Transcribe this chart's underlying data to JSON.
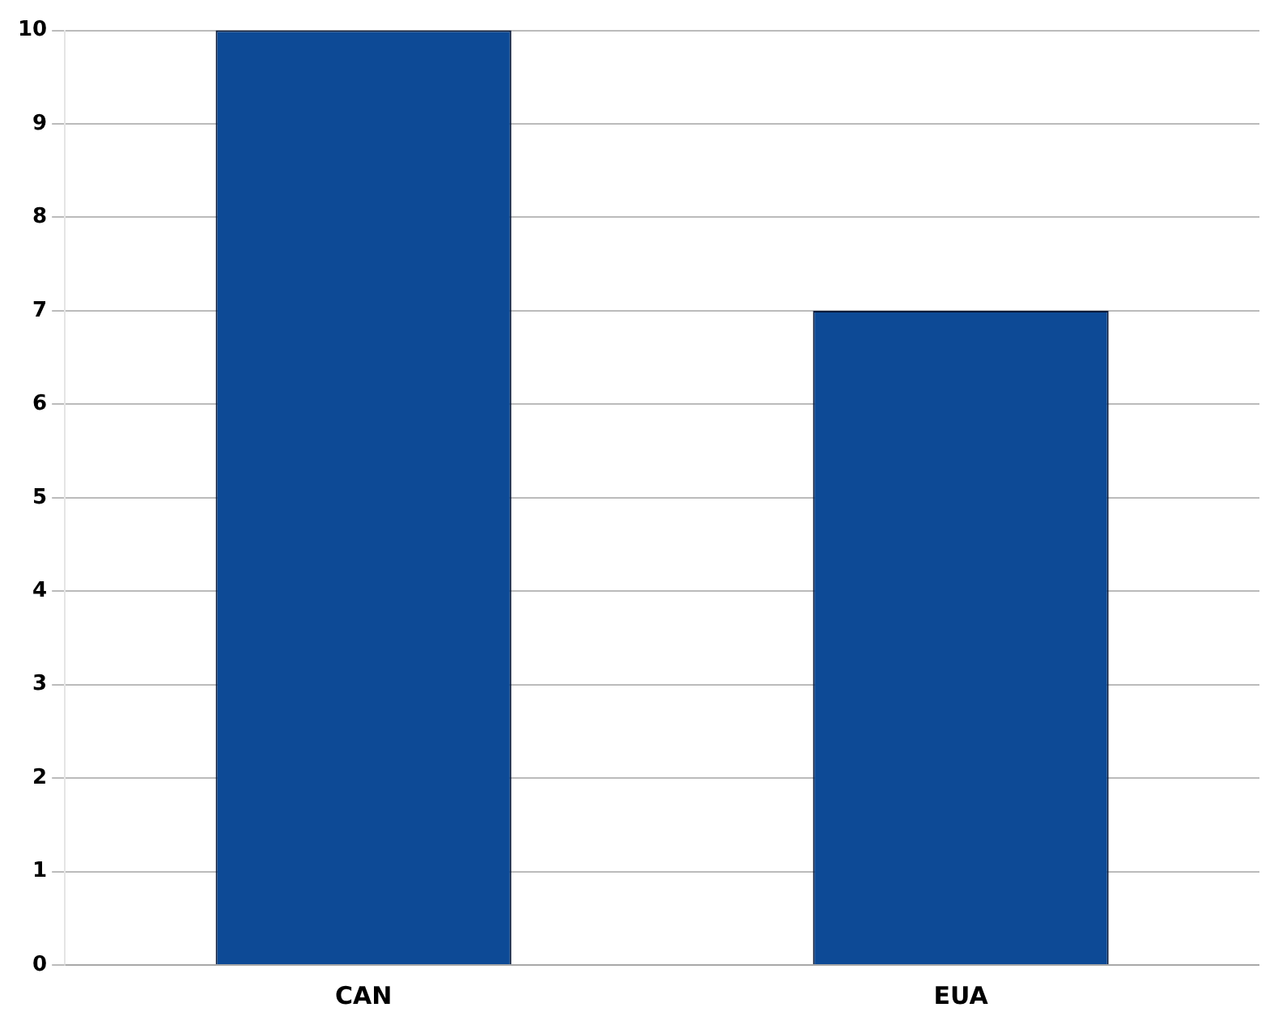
{
  "chart_data": {
    "type": "bar",
    "categories": [
      "CAN",
      "EUA"
    ],
    "values": [
      10,
      7
    ],
    "color": "#0d4a96",
    "ylim": [
      0,
      10
    ],
    "yticks": [
      0,
      1,
      2,
      3,
      4,
      5,
      6,
      7,
      8,
      9,
      10
    ],
    "grid": "y"
  }
}
